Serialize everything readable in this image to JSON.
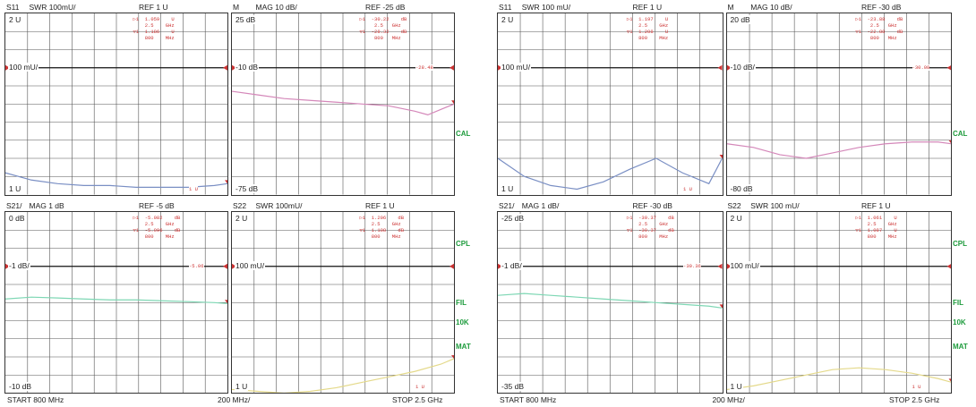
{
  "chart_data": [
    {
      "type": "line",
      "printout": "left",
      "footer": {
        "start": "START 800 MHz",
        "span": "200 MHz/",
        "stop": "STOP 2.5 GHz"
      },
      "side_labels": [
        "CAL",
        "CPL",
        "FIL",
        "10K",
        "MAT"
      ],
      "panels": [
        {
          "id": "s11",
          "title": "S11",
          "format": "SWR  100mU/",
          "ref": "REF  1  U",
          "top": "2 U",
          "mid": "100 mU/",
          "bottom": "1 U",
          "marker": "▷1  1.059    U\n    2.5    GHz\n▽1  1.186    U\n    800    MHz",
          "readout": "1 U",
          "x_mhz": [
            800,
            1000,
            1200,
            1400,
            1600,
            1800,
            2000,
            2200,
            2400,
            2500
          ],
          "values": [
            1.12,
            1.08,
            1.06,
            1.05,
            1.05,
            1.04,
            1.04,
            1.04,
            1.05,
            1.06
          ],
          "ylim": [
            1,
            2
          ]
        },
        {
          "id": "s11mag",
          "title": "M",
          "format": "MAG  10  dB/",
          "ref": "REF  -25  dB",
          "top": "25 dB",
          "mid": "-10 dB",
          "bottom": "-75 dB",
          "marker": "▷1  -30.22    dB\n     2.5   GHz\n▽1  -28.32    dB\n     800   MHz",
          "readout": "-28.48",
          "x_mhz": [
            800,
            1000,
            1200,
            1400,
            1600,
            1800,
            2000,
            2200,
            2300,
            2400,
            2500
          ],
          "values": [
            -18,
            -20,
            -22,
            -23,
            -24,
            -25,
            -26,
            -29,
            -31,
            -28,
            -25
          ],
          "ylim": [
            -75,
            25
          ]
        },
        {
          "id": "s21",
          "title": "S21/",
          "format": "MAG  1  dB",
          "ref": "REF  -5  dB",
          "top": "0 dB",
          "mid": "-1 dB/",
          "bottom": "-10 dB",
          "marker": "▷1  -5.082    dB\n    2.5    GHz\n▽1  -5.096    dB\n    800    MHz",
          "readout": "-5.06",
          "x_mhz": [
            800,
            1000,
            1200,
            1400,
            1600,
            1800,
            2000,
            2200,
            2400,
            2500
          ],
          "values": [
            -4.8,
            -4.7,
            -4.75,
            -4.8,
            -4.85,
            -4.85,
            -4.9,
            -4.95,
            -5.0,
            -5.05
          ],
          "ylim": [
            -10,
            0
          ]
        },
        {
          "id": "s22",
          "title": "S22",
          "format": "SWR  100mU/",
          "ref": "REF  1  U",
          "top": "2 U",
          "mid": "100 mU/",
          "bottom": "1 U",
          "marker": "▷1  1.206    dB\n    2.5    GHz\n▽1  1.108    dB\n    800    MHz",
          "readout": "1 U",
          "x_mhz": [
            800,
            1000,
            1200,
            1400,
            1600,
            1800,
            2000,
            2200,
            2400,
            2500
          ],
          "values": [
            1.02,
            1.01,
            1.0,
            1.01,
            1.03,
            1.06,
            1.09,
            1.12,
            1.16,
            1.19
          ],
          "ylim": [
            1,
            2
          ]
        }
      ]
    },
    {
      "type": "line",
      "printout": "right",
      "footer": {
        "start": "START  800  MHz",
        "span": "200  MHz/",
        "stop": "STOP  2.5  GHz"
      },
      "side_labels": [
        "CAL",
        "CPL",
        "FIL",
        "10K",
        "MAT"
      ],
      "panels": [
        {
          "id": "s11",
          "title": "S11",
          "format": "SWR  100  mU/",
          "ref": "REF  1  U",
          "top": "2 U",
          "mid": "100 mU/",
          "bottom": "1 U",
          "marker": "▷1  1.197    U\n    2.5    GHz\n▽1  1.208    U\n    800    MHz",
          "readout": "1 U",
          "x_mhz": [
            800,
            1000,
            1200,
            1400,
            1600,
            1800,
            2000,
            2200,
            2400,
            2500
          ],
          "values": [
            1.2,
            1.1,
            1.05,
            1.03,
            1.07,
            1.14,
            1.2,
            1.12,
            1.06,
            1.2
          ],
          "ylim": [
            1,
            2
          ]
        },
        {
          "id": "s11mag",
          "title": "M",
          "format": "MAG  10  dB/",
          "ref": "REF  -30  dB",
          "top": "20 dB",
          "mid": "-10 dB/",
          "bottom": "-80 dB",
          "marker": "▷1  -23.88    dB\n     2.5   GHz\n▽1  -22.88    dB\n     800   MHz",
          "readout": "-30.08",
          "x_mhz": [
            800,
            1000,
            1200,
            1400,
            1600,
            1800,
            2000,
            2200,
            2400,
            2500
          ],
          "values": [
            -52,
            -54,
            -58,
            -60,
            -57,
            -54,
            -52,
            -51,
            -51,
            -52
          ],
          "ylim": [
            -80,
            20
          ]
        },
        {
          "id": "s21",
          "title": "S21/",
          "format": "MAG  1  dB/",
          "ref": "REF  -30  dB",
          "top": "-25 dB",
          "mid": "-1 dB/",
          "bottom": "-35 dB",
          "marker": "▷1  -30.37    dB\n    2.5    GHz\n▽1  -30.37    dB\n    800    MHz",
          "readout": "-30.36",
          "x_mhz": [
            800,
            1000,
            1200,
            1400,
            1600,
            1800,
            2000,
            2200,
            2400,
            2500
          ],
          "values": [
            -29.6,
            -29.5,
            -29.6,
            -29.7,
            -29.8,
            -29.9,
            -30.0,
            -30.1,
            -30.2,
            -30.3
          ],
          "ylim": [
            -35,
            -25
          ]
        },
        {
          "id": "s22",
          "title": "S22",
          "format": "SWR  100  mU/",
          "ref": "REF  1  U",
          "top": "2 U",
          "mid": "100 mU/",
          "bottom": "1 U",
          "marker": "▷1  1.061    U\n    2.5    GHz\n▽1  1.087    U\n    800    MHz",
          "readout": "1 U",
          "x_mhz": [
            800,
            1000,
            1200,
            1400,
            1600,
            1800,
            2000,
            2200,
            2400,
            2500
          ],
          "values": [
            1.02,
            1.04,
            1.07,
            1.1,
            1.13,
            1.14,
            1.13,
            1.11,
            1.08,
            1.06
          ],
          "ylim": [
            1,
            2
          ]
        }
      ]
    }
  ]
}
